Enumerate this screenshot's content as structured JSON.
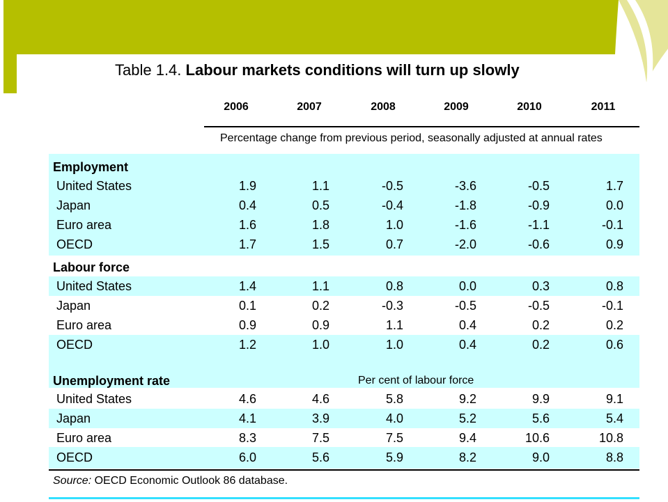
{
  "colors": {
    "accent_green": "#b5bf00",
    "accent_pale": "#e5e599",
    "band": "#ccffff",
    "rule_cyan": "#33e0ff"
  },
  "title": {
    "prefix": "Table 1.4.",
    "main": "Labour markets conditions will turn up slowly"
  },
  "years": [
    "2006",
    "2007",
    "2008",
    "2009",
    "2010",
    "2011"
  ],
  "subheader": "Percentage change from previous period, seasonally adjusted at annual rates",
  "sections": [
    {
      "title": "Employment",
      "rows": [
        {
          "label": "United States",
          "values": [
            "1.9",
            "1.1",
            "-0.5",
            "-3.6",
            "-0.5",
            "1.7"
          ]
        },
        {
          "label": "Japan",
          "values": [
            "0.4",
            "0.5",
            "-0.4",
            "-1.8",
            "-0.9",
            "0.0"
          ]
        },
        {
          "label": "Euro area",
          "values": [
            "1.6",
            "1.8",
            "1.0",
            "-1.6",
            "-1.1",
            "-0.1"
          ]
        },
        {
          "label": "OECD",
          "values": [
            "1.7",
            "1.5",
            "0.7",
            "-2.0",
            "-0.6",
            "0.9"
          ]
        }
      ]
    },
    {
      "title": "Labour force",
      "rows": [
        {
          "label": "United States",
          "values": [
            "1.4",
            "1.1",
            "0.8",
            "0.0",
            "0.3",
            "0.8"
          ]
        },
        {
          "label": "Japan",
          "values": [
            "0.1",
            "0.2",
            "-0.3",
            "-0.5",
            "-0.5",
            "-0.1"
          ]
        },
        {
          "label": "Euro area",
          "values": [
            "0.9",
            "0.9",
            "1.1",
            "0.4",
            "0.2",
            "0.2"
          ]
        },
        {
          "label": "OECD",
          "values": [
            "1.2",
            "1.0",
            "1.0",
            "0.4",
            "0.2",
            "0.6"
          ]
        }
      ]
    },
    {
      "title": "Unemployment rate",
      "note": "Per cent of labour force",
      "rows": [
        {
          "label": "United States",
          "values": [
            "4.6",
            "4.6",
            "5.8",
            "9.2",
            "9.9",
            "9.1"
          ]
        },
        {
          "label": "Japan",
          "values": [
            "4.1",
            "3.9",
            "4.0",
            "5.2",
            "5.6",
            "5.4"
          ]
        },
        {
          "label": "Euro area",
          "values": [
            "8.3",
            "7.5",
            "7.5",
            "9.4",
            "10.6",
            "10.8"
          ]
        },
        {
          "label": "OECD",
          "values": [
            "6.0",
            "5.6",
            "5.9",
            "8.2",
            "9.0",
            "8.8"
          ]
        }
      ]
    }
  ],
  "source": {
    "prefix": "Source:",
    "text": "OECD Economic Outlook 86 database."
  }
}
